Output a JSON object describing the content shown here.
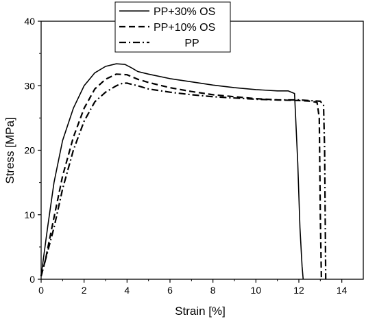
{
  "chart_data": {
    "type": "line",
    "title": "",
    "xlabel": "Strain [%]",
    "ylabel": "Stress [MPa]",
    "xlim": [
      0,
      15
    ],
    "ylim": [
      0,
      40
    ],
    "xticks": [
      0,
      2,
      4,
      6,
      8,
      10,
      12,
      14
    ],
    "yticks": [
      0,
      10,
      20,
      30,
      40
    ],
    "grid": false,
    "legend_position": "top-center",
    "series": [
      {
        "name": "PP+30% OS",
        "line_style": "solid",
        "color": "#000000",
        "x": [
          0,
          0.1,
          0.3,
          0.6,
          1.0,
          1.5,
          2.0,
          2.5,
          3.0,
          3.5,
          3.9,
          4.2,
          4.5,
          5.0,
          6.0,
          7.0,
          8.0,
          9.0,
          10.0,
          11.0,
          11.5,
          11.8,
          11.95,
          12.05,
          12.15,
          12.2
        ],
        "y": [
          0.5,
          3.0,
          8.0,
          15.0,
          21.5,
          26.5,
          30.0,
          32.0,
          33.0,
          33.4,
          33.3,
          32.8,
          32.2,
          31.8,
          31.1,
          30.6,
          30.1,
          29.7,
          29.4,
          29.2,
          29.2,
          28.8,
          18.0,
          8.0,
          2.0,
          0.0
        ]
      },
      {
        "name": "PP+10% OS",
        "line_style": "dashed",
        "color": "#000000",
        "x": [
          0,
          0.2,
          0.5,
          1.0,
          1.5,
          2.0,
          2.5,
          3.0,
          3.5,
          4.0,
          4.5,
          5.0,
          6.0,
          7.0,
          8.0,
          9.0,
          10.0,
          11.0,
          12.0,
          12.6,
          12.85,
          12.95,
          13.0,
          13.05
        ],
        "y": [
          0.5,
          3.0,
          8.0,
          16.0,
          22.0,
          26.5,
          29.5,
          31.0,
          31.8,
          31.7,
          31.0,
          30.5,
          29.7,
          29.1,
          28.6,
          28.3,
          28.0,
          27.8,
          27.7,
          27.6,
          27.4,
          25.0,
          10.0,
          0.0
        ]
      },
      {
        "name": "PP",
        "line_style": "dash-dot",
        "color": "#000000",
        "x": [
          0,
          0.2,
          0.6,
          1.0,
          1.5,
          2.0,
          2.5,
          3.0,
          3.5,
          3.8,
          4.0,
          4.5,
          5.0,
          6.0,
          7.0,
          8.0,
          9.0,
          10.0,
          11.0,
          12.0,
          12.5,
          13.0,
          13.15,
          13.2,
          13.25
        ],
        "y": [
          0.5,
          3.0,
          8.0,
          14.0,
          20.0,
          24.5,
          27.5,
          29.0,
          30.0,
          30.4,
          30.4,
          30.0,
          29.5,
          29.0,
          28.6,
          28.3,
          28.1,
          27.9,
          27.8,
          27.8,
          27.7,
          27.6,
          27.0,
          20.0,
          0.0
        ]
      }
    ]
  }
}
